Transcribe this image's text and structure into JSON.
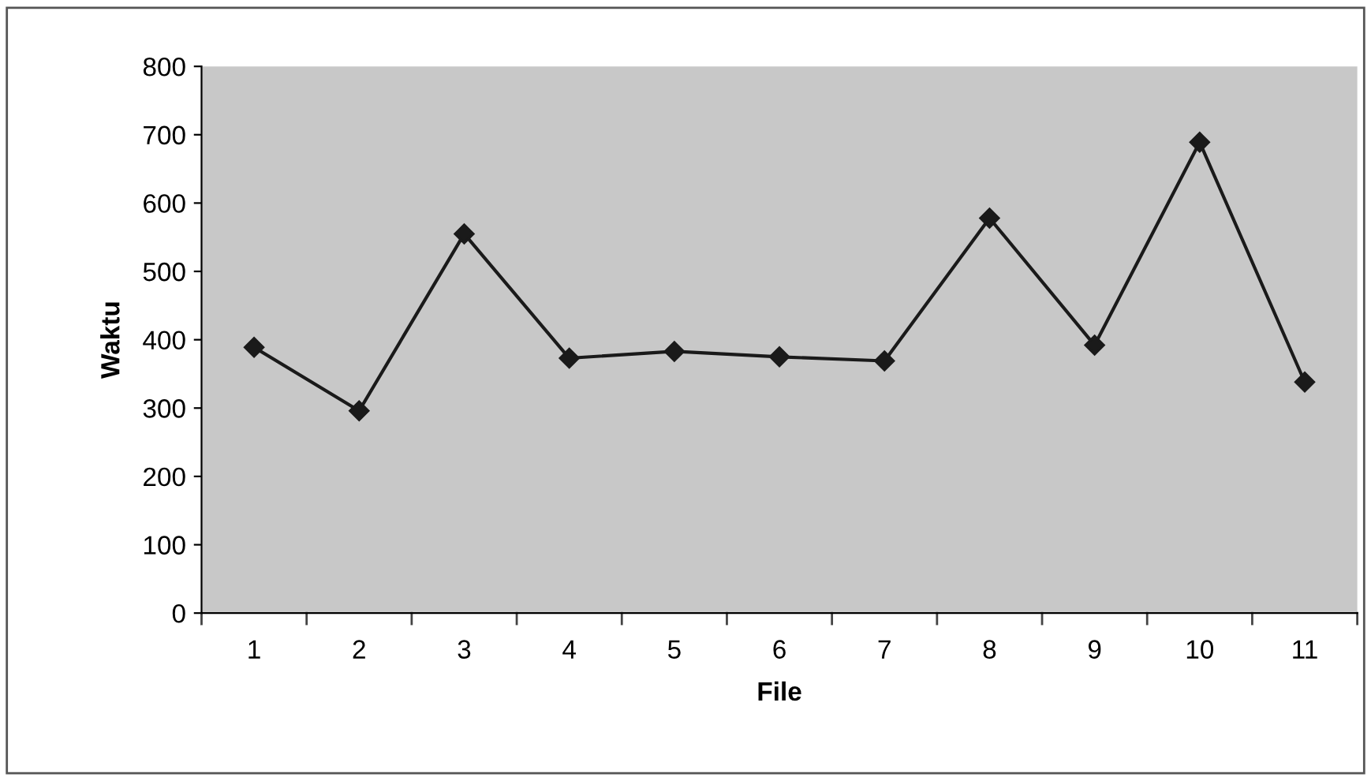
{
  "chart_data": {
    "type": "line",
    "xlabel": "File",
    "ylabel": "Waktu",
    "categories": [
      "1",
      "2",
      "3",
      "4",
      "5",
      "6",
      "7",
      "8",
      "9",
      "10",
      "11"
    ],
    "series": [
      {
        "color": "#1a1a1a",
        "values": [
          389,
          296,
          555,
          373,
          383,
          375,
          369,
          578,
          392,
          689,
          338
        ]
      }
    ],
    "ylim": [
      0,
      800
    ],
    "yticks": [
      0,
      100,
      200,
      300,
      400,
      500,
      600,
      700,
      800
    ],
    "marker": "diamond",
    "line_style": "solid",
    "grid": false
  }
}
